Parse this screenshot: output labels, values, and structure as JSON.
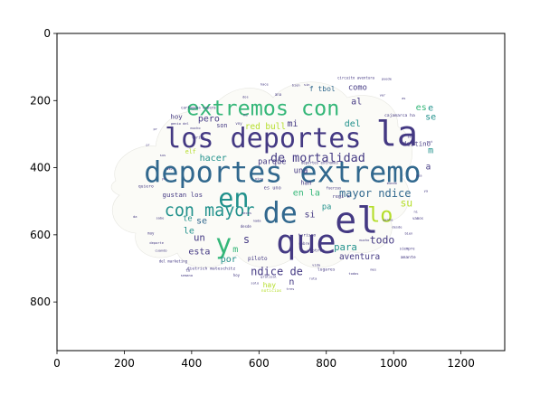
{
  "chart_data": {
    "type": "wordcloud",
    "title": "",
    "xlabel": "",
    "ylabel": "",
    "xlim": [
      0,
      1330
    ],
    "ylim": [
      945,
      0
    ],
    "xticks": [
      0,
      200,
      400,
      600,
      800,
      1000,
      1200
    ],
    "yticks": [
      0,
      200,
      400,
      600,
      800
    ],
    "grid": false,
    "colors": {
      "axis": "#000000",
      "background": "#ffffff",
      "dark_purple": "#443983",
      "teal": "#21918c",
      "green": "#35b779",
      "lime": "#5ec962",
      "yellow": "#b5de2b",
      "blue": "#31688e"
    },
    "words": [
      {
        "text": "los deportes",
        "x": 612,
        "y": 313,
        "size": 90,
        "color": "#443983"
      },
      {
        "text": "deportes extremo",
        "x": 670,
        "y": 414,
        "size": 95,
        "color": "#31688e"
      },
      {
        "text": "extremos con",
        "x": 612,
        "y": 222,
        "size": 70,
        "color": "#35b779"
      },
      {
        "text": "la",
        "x": 1010,
        "y": 300,
        "size": 115,
        "color": "#443983"
      },
      {
        "text": "en",
        "x": 525,
        "y": 492,
        "size": 85,
        "color": "#21918c"
      },
      {
        "text": "de",
        "x": 663,
        "y": 536,
        "size": 95,
        "color": "#31688e"
      },
      {
        "text": "el",
        "x": 890,
        "y": 558,
        "size": 120,
        "color": "#443983"
      },
      {
        "text": "lo",
        "x": 960,
        "y": 540,
        "size": 70,
        "color": "#b5de2b"
      },
      {
        "text": "que",
        "x": 740,
        "y": 620,
        "size": 110,
        "color": "#443983"
      },
      {
        "text": "y",
        "x": 495,
        "y": 628,
        "size": 90,
        "color": "#35b779"
      },
      {
        "text": "con mayor",
        "x": 453,
        "y": 529,
        "size": 55,
        "color": "#21918c"
      },
      {
        "text": "de mortalidad",
        "x": 775,
        "y": 373,
        "size": 40,
        "color": "#443983"
      },
      {
        "text": "mayor ndice",
        "x": 945,
        "y": 476,
        "size": 36,
        "color": "#31688e"
      },
      {
        "text": "ndice de",
        "x": 653,
        "y": 710,
        "size": 36,
        "color": "#443983"
      },
      {
        "text": "para",
        "x": 857,
        "y": 637,
        "size": 32,
        "color": "#21918c"
      },
      {
        "text": "todo",
        "x": 966,
        "y": 615,
        "size": 34,
        "color": "#443983"
      },
      {
        "text": "aventura",
        "x": 899,
        "y": 667,
        "size": 28,
        "color": "#443983"
      },
      {
        "text": "hacer",
        "x": 464,
        "y": 373,
        "size": 30,
        "color": "#21918c"
      },
      {
        "text": "pero",
        "x": 451,
        "y": 256,
        "size": 30,
        "color": "#443983"
      },
      {
        "text": "mi",
        "x": 700,
        "y": 270,
        "size": 30,
        "color": "#443983"
      },
      {
        "text": "del",
        "x": 878,
        "y": 270,
        "size": 30,
        "color": "#21918c"
      },
      {
        "text": "al",
        "x": 890,
        "y": 204,
        "size": 30,
        "color": "#443983"
      },
      {
        "text": "como",
        "x": 893,
        "y": 163,
        "size": 26,
        "color": "#443983"
      },
      {
        "text": "f tbol",
        "x": 788,
        "y": 165,
        "size": 24,
        "color": "#31688e"
      },
      {
        "text": "red bull",
        "x": 619,
        "y": 279,
        "size": 28,
        "color": "#b5de2b"
      },
      {
        "text": "su",
        "x": 1038,
        "y": 505,
        "size": 34,
        "color": "#b5de2b"
      },
      {
        "text": "es",
        "x": 1082,
        "y": 222,
        "size": 30,
        "color": "#35b779"
      },
      {
        "text": "m",
        "x": 1110,
        "y": 350,
        "size": 30,
        "color": "#21918c"
      },
      {
        "text": "e",
        "x": 1110,
        "y": 224,
        "size": 30,
        "color": "#21918c"
      },
      {
        "text": "se",
        "x": 1110,
        "y": 250,
        "size": 30,
        "color": "#21918c"
      },
      {
        "text": "destino",
        "x": 1068,
        "y": 328,
        "size": 22,
        "color": "#443983"
      },
      {
        "text": "a",
        "x": 1103,
        "y": 398,
        "size": 28,
        "color": "#443983"
      },
      {
        "text": "en la",
        "x": 741,
        "y": 477,
        "size": 30,
        "color": "#35b779"
      },
      {
        "text": "una",
        "x": 724,
        "y": 411,
        "size": 26,
        "color": "#443983"
      },
      {
        "text": "parque",
        "x": 639,
        "y": 383,
        "size": 26,
        "color": "#443983"
      },
      {
        "text": "si",
        "x": 751,
        "y": 541,
        "size": 30,
        "color": "#443983"
      },
      {
        "text": "le",
        "x": 392,
        "y": 590,
        "size": 30,
        "color": "#21918c"
      },
      {
        "text": "te",
        "x": 388,
        "y": 553,
        "size": 26,
        "color": "#21918c"
      },
      {
        "text": "un",
        "x": 423,
        "y": 608,
        "size": 32,
        "color": "#443983"
      },
      {
        "text": "se",
        "x": 430,
        "y": 560,
        "size": 30,
        "color": "#31688e"
      },
      {
        "text": "s",
        "x": 563,
        "y": 614,
        "size": 36,
        "color": "#443983"
      },
      {
        "text": "m",
        "x": 530,
        "y": 645,
        "size": 30,
        "color": "#35b779"
      },
      {
        "text": "esta",
        "x": 423,
        "y": 652,
        "size": 30,
        "color": "#443983"
      },
      {
        "text": "por",
        "x": 510,
        "y": 675,
        "size": 30,
        "color": "#21918c"
      },
      {
        "text": "n",
        "x": 697,
        "y": 742,
        "size": 30,
        "color": "#443983"
      },
      {
        "text": "hay",
        "x": 631,
        "y": 750,
        "size": 24,
        "color": "#b5de2b"
      },
      {
        "text": "gustan los",
        "x": 373,
        "y": 480,
        "size": 22,
        "color": "#443983"
      },
      {
        "text": "hoy",
        "x": 355,
        "y": 248,
        "size": 22,
        "color": "#443983"
      },
      {
        "text": "son",
        "x": 490,
        "y": 275,
        "size": 20,
        "color": "#443983"
      },
      {
        "text": "elf",
        "x": 397,
        "y": 353,
        "size": 20,
        "color": "#b5de2b"
      },
      {
        "text": "pa",
        "x": 801,
        "y": 518,
        "size": 26,
        "color": "#21918c"
      },
      {
        "text": "han",
        "x": 740,
        "y": 445,
        "size": 20,
        "color": "#443983"
      },
      {
        "text": "es uno",
        "x": 640,
        "y": 462,
        "size": 16,
        "color": "#443983"
      },
      {
        "text": "regi n",
        "x": 844,
        "y": 487,
        "size": 16,
        "color": "#443983"
      },
      {
        "text": "piloto",
        "x": 596,
        "y": 672,
        "size": 18,
        "color": "#443983"
      },
      {
        "text": "lugares",
        "x": 800,
        "y": 705,
        "size": 14,
        "color": "#443983"
      },
      {
        "text": "noticias",
        "x": 637,
        "y": 769,
        "size": 14,
        "color": "#b5de2b"
      },
      {
        "text": "deportes extremos",
        "x": 780,
        "y": 385,
        "size": 12,
        "color": "#443983"
      },
      {
        "text": "dietrich mateschitz",
        "x": 458,
        "y": 703,
        "size": 14,
        "color": "#443983"
      },
      {
        "text": "cartagena espera",
        "x": 420,
        "y": 221,
        "size": 12,
        "color": "#443983"
      },
      {
        "text": "cajamarca ha",
        "x": 1018,
        "y": 246,
        "size": 14,
        "color": "#443983"
      },
      {
        "text": "del marketing",
        "x": 345,
        "y": 678,
        "size": 12,
        "color": "#443983"
      },
      {
        "text": "turismo",
        "x": 743,
        "y": 603,
        "size": 14,
        "color": "#443983"
      },
      {
        "text": "y otros",
        "x": 769,
        "y": 649,
        "size": 14,
        "color": "#443983"
      },
      {
        "text": "amante",
        "x": 1043,
        "y": 669,
        "size": 14,
        "color": "#443983"
      },
      {
        "text": "siempre",
        "x": 1040,
        "y": 641,
        "size": 12,
        "color": "#443983"
      },
      {
        "text": "quiero",
        "x": 264,
        "y": 458,
        "size": 14,
        "color": "#443983"
      },
      {
        "text": "vamos",
        "x": 1072,
        "y": 551,
        "size": 12,
        "color": "#443983"
      },
      {
        "text": "muy",
        "x": 279,
        "y": 595,
        "size": 12,
        "color": "#443983"
      },
      {
        "text": "circuito aventura",
        "x": 888,
        "y": 132,
        "size": 12,
        "color": "#443983"
      },
      {
        "text": "genio del",
        "x": 365,
        "y": 269,
        "size": 11,
        "color": "#443983"
      },
      {
        "text": "varios",
        "x": 420,
        "y": 310,
        "size": 12,
        "color": "#443983"
      },
      {
        "text": "voy",
        "x": 540,
        "y": 268,
        "size": 12,
        "color": "#443983"
      },
      {
        "text": "desde",
        "x": 561,
        "y": 575,
        "size": 12,
        "color": "#443983"
      },
      {
        "text": "sobre",
        "x": 734,
        "y": 626,
        "size": 12,
        "color": "#443983"
      },
      {
        "text": "ana",
        "x": 657,
        "y": 182,
        "size": 12,
        "color": "#443983"
      },
      {
        "text": "sabe",
        "x": 306,
        "y": 551,
        "size": 11,
        "color": "#443983"
      },
      {
        "text": "da",
        "x": 232,
        "y": 547,
        "size": 11,
        "color": "#443983"
      },
      {
        "text": "fuerzas",
        "x": 822,
        "y": 461,
        "size": 12,
        "color": "#443983"
      },
      {
        "text": "cuando",
        "x": 309,
        "y": 648,
        "size": 11,
        "color": "#443983"
      },
      {
        "text": "semana",
        "x": 385,
        "y": 721,
        "size": 11,
        "color": "#443983"
      },
      {
        "text": "mucho",
        "x": 913,
        "y": 617,
        "size": 11,
        "color": "#443983"
      },
      {
        "text": "pr",
        "x": 292,
        "y": 286,
        "size": 11,
        "color": "#443983"
      },
      {
        "text": "pr",
        "x": 270,
        "y": 332,
        "size": 10,
        "color": "#443983"
      },
      {
        "text": "tu",
        "x": 389,
        "y": 705,
        "size": 12,
        "color": "#443983"
      },
      {
        "text": "ha",
        "x": 560,
        "y": 244,
        "size": 11,
        "color": "#443983"
      },
      {
        "text": "est",
        "x": 1107,
        "y": 323,
        "size": 11,
        "color": "#443983"
      },
      {
        "text": "soy",
        "x": 1050,
        "y": 308,
        "size": 11,
        "color": "#443983"
      },
      {
        "text": "gratisal",
        "x": 629,
        "y": 725,
        "size": 11,
        "color": "#443983"
      },
      {
        "text": "deporte",
        "x": 296,
        "y": 625,
        "size": 11,
        "color": "#443983"
      },
      {
        "text": "mucho",
        "x": 411,
        "y": 283,
        "size": 11,
        "color": "#443983"
      },
      {
        "text": "hoy",
        "x": 533,
        "y": 720,
        "size": 12,
        "color": "#443983"
      },
      {
        "text": "ruta",
        "x": 760,
        "y": 731,
        "size": 11,
        "color": "#443983"
      },
      {
        "text": "todos",
        "x": 881,
        "y": 716,
        "size": 11,
        "color": "#443983"
      },
      {
        "text": "gente",
        "x": 983,
        "y": 556,
        "size": 11,
        "color": "#443983"
      },
      {
        "text": "desde",
        "x": 1010,
        "y": 577,
        "size": 11,
        "color": "#443983"
      },
      {
        "text": "mundo",
        "x": 995,
        "y": 447,
        "size": 11,
        "color": "#443983"
      },
      {
        "text": "otro",
        "x": 600,
        "y": 433,
        "size": 11,
        "color": "#443983"
      },
      {
        "text": "nada",
        "x": 594,
        "y": 559,
        "size": 11,
        "color": "#443983"
      },
      {
        "text": "veces",
        "x": 563,
        "y": 536,
        "size": 11,
        "color": "#443983"
      },
      {
        "text": "bien",
        "x": 1045,
        "y": 596,
        "size": 11,
        "color": "#443983"
      },
      {
        "text": "ya",
        "x": 1096,
        "y": 470,
        "size": 11,
        "color": "#443983"
      },
      {
        "text": "sus",
        "x": 314,
        "y": 364,
        "size": 11,
        "color": "#443983"
      },
      {
        "text": "as",
        "x": 1030,
        "y": 194,
        "size": 11,
        "color": "#443983"
      },
      {
        "text": "vida",
        "x": 770,
        "y": 690,
        "size": 11,
        "color": "#443983"
      },
      {
        "text": "mes",
        "x": 940,
        "y": 704,
        "size": 11,
        "color": "#443983"
      },
      {
        "text": "solo",
        "x": 588,
        "y": 744,
        "size": 11,
        "color": "#443983"
      },
      {
        "text": "tres",
        "x": 693,
        "y": 762,
        "size": 11,
        "color": "#443983"
      },
      {
        "text": "sin",
        "x": 742,
        "y": 154,
        "size": 11,
        "color": "#443983"
      },
      {
        "text": "bien",
        "x": 710,
        "y": 155,
        "size": 11,
        "color": "#443983"
      },
      {
        "text": "ver",
        "x": 967,
        "y": 185,
        "size": 11,
        "color": "#443983"
      },
      {
        "text": "puede",
        "x": 979,
        "y": 136,
        "size": 11,
        "color": "#443983"
      },
      {
        "text": "hace",
        "x": 616,
        "y": 152,
        "size": 11,
        "color": "#443983"
      },
      {
        "text": "dos",
        "x": 560,
        "y": 190,
        "size": 11,
        "color": "#443983"
      },
      {
        "text": "vez",
        "x": 335,
        "y": 404,
        "size": 11,
        "color": "#443983"
      },
      {
        "text": "yo",
        "x": 317,
        "y": 434,
        "size": 11,
        "color": "#443983"
      },
      {
        "text": "ni",
        "x": 1066,
        "y": 532,
        "size": 11,
        "color": "#443983"
      },
      {
        "text": "sea",
        "x": 1075,
        "y": 424,
        "size": 11,
        "color": "#443983"
      }
    ]
  }
}
